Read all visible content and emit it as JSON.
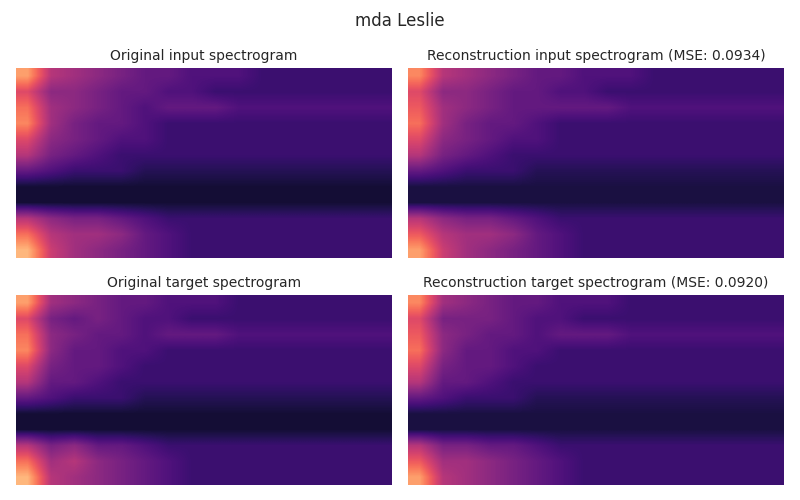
{
  "title": "mda Leslie",
  "chart_data": [
    {
      "type": "heatmap",
      "title": "Original input spectrogram",
      "tick_labels": false,
      "value_range": [
        0,
        1
      ],
      "cells": [
        [
          0.8,
          0.5,
          0.45,
          0.4,
          0.35,
          0.3,
          0.3,
          0.25,
          0.25,
          0.25,
          0.2,
          0.2,
          0.2,
          0.2,
          0.2,
          0.2
        ],
        [
          0.6,
          0.4,
          0.4,
          0.35,
          0.3,
          0.3,
          0.25,
          0.25,
          0.2,
          0.2,
          0.2,
          0.2,
          0.2,
          0.2,
          0.2,
          0.2
        ],
        [
          0.7,
          0.45,
          0.4,
          0.35,
          0.3,
          0.25,
          0.3,
          0.3,
          0.3,
          0.25,
          0.25,
          0.25,
          0.25,
          0.25,
          0.25,
          0.25
        ],
        [
          0.75,
          0.45,
          0.35,
          0.3,
          0.3,
          0.25,
          0.2,
          0.2,
          0.2,
          0.2,
          0.2,
          0.2,
          0.2,
          0.2,
          0.2,
          0.2
        ],
        [
          0.6,
          0.4,
          0.35,
          0.3,
          0.25,
          0.25,
          0.2,
          0.2,
          0.2,
          0.2,
          0.2,
          0.2,
          0.2,
          0.2,
          0.2,
          0.2
        ],
        [
          0.5,
          0.35,
          0.3,
          0.25,
          0.2,
          0.2,
          0.2,
          0.2,
          0.2,
          0.2,
          0.2,
          0.2,
          0.2,
          0.2,
          0.2,
          0.2
        ],
        [
          0.3,
          0.25,
          0.2,
          0.2,
          0.2,
          0.15,
          0.15,
          0.15,
          0.15,
          0.15,
          0.15,
          0.15,
          0.15,
          0.15,
          0.15,
          0.15
        ],
        [
          0.1,
          0.1,
          0.1,
          0.1,
          0.1,
          0.1,
          0.1,
          0.1,
          0.1,
          0.1,
          0.1,
          0.1,
          0.1,
          0.1,
          0.1,
          0.1
        ],
        [
          0.1,
          0.1,
          0.1,
          0.1,
          0.1,
          0.1,
          0.1,
          0.1,
          0.1,
          0.1,
          0.1,
          0.1,
          0.1,
          0.1,
          0.1,
          0.1
        ],
        [
          0.5,
          0.4,
          0.35,
          0.35,
          0.3,
          0.25,
          0.2,
          0.2,
          0.2,
          0.2,
          0.2,
          0.2,
          0.2,
          0.2,
          0.2,
          0.2
        ],
        [
          0.7,
          0.5,
          0.45,
          0.45,
          0.4,
          0.3,
          0.25,
          0.2,
          0.2,
          0.2,
          0.2,
          0.2,
          0.2,
          0.2,
          0.2,
          0.2
        ],
        [
          0.85,
          0.55,
          0.45,
          0.4,
          0.35,
          0.3,
          0.25,
          0.2,
          0.2,
          0.2,
          0.2,
          0.2,
          0.2,
          0.2,
          0.2,
          0.2
        ]
      ]
    },
    {
      "type": "heatmap",
      "title": "Reconstruction input spectrogram (MSE: 0.0934)",
      "tick_labels": false,
      "value_range": [
        0,
        1
      ],
      "cells": [
        [
          0.75,
          0.5,
          0.45,
          0.4,
          0.35,
          0.3,
          0.3,
          0.25,
          0.25,
          0.25,
          0.2,
          0.2,
          0.2,
          0.2,
          0.2,
          0.2
        ],
        [
          0.6,
          0.4,
          0.4,
          0.35,
          0.3,
          0.3,
          0.25,
          0.25,
          0.2,
          0.2,
          0.2,
          0.2,
          0.2,
          0.2,
          0.2,
          0.2
        ],
        [
          0.65,
          0.45,
          0.4,
          0.35,
          0.3,
          0.3,
          0.3,
          0.3,
          0.3,
          0.25,
          0.25,
          0.25,
          0.25,
          0.25,
          0.25,
          0.25
        ],
        [
          0.7,
          0.45,
          0.35,
          0.3,
          0.3,
          0.25,
          0.2,
          0.2,
          0.2,
          0.2,
          0.2,
          0.2,
          0.2,
          0.2,
          0.2,
          0.2
        ],
        [
          0.6,
          0.4,
          0.35,
          0.3,
          0.25,
          0.25,
          0.2,
          0.2,
          0.2,
          0.2,
          0.2,
          0.2,
          0.2,
          0.2,
          0.2,
          0.2
        ],
        [
          0.5,
          0.35,
          0.3,
          0.25,
          0.2,
          0.2,
          0.2,
          0.2,
          0.2,
          0.2,
          0.2,
          0.2,
          0.2,
          0.2,
          0.2,
          0.2
        ],
        [
          0.3,
          0.25,
          0.2,
          0.2,
          0.2,
          0.15,
          0.15,
          0.15,
          0.15,
          0.15,
          0.15,
          0.15,
          0.15,
          0.15,
          0.15,
          0.15
        ],
        [
          0.12,
          0.12,
          0.12,
          0.12,
          0.12,
          0.12,
          0.12,
          0.12,
          0.12,
          0.12,
          0.12,
          0.12,
          0.12,
          0.12,
          0.12,
          0.12
        ],
        [
          0.12,
          0.12,
          0.12,
          0.12,
          0.12,
          0.12,
          0.12,
          0.12,
          0.12,
          0.12,
          0.12,
          0.12,
          0.12,
          0.12,
          0.12,
          0.12
        ],
        [
          0.5,
          0.4,
          0.35,
          0.35,
          0.3,
          0.25,
          0.2,
          0.2,
          0.2,
          0.2,
          0.2,
          0.2,
          0.2,
          0.2,
          0.2,
          0.2
        ],
        [
          0.65,
          0.5,
          0.45,
          0.45,
          0.4,
          0.3,
          0.25,
          0.2,
          0.2,
          0.2,
          0.2,
          0.2,
          0.2,
          0.2,
          0.2,
          0.2
        ],
        [
          0.8,
          0.55,
          0.45,
          0.4,
          0.35,
          0.3,
          0.25,
          0.2,
          0.2,
          0.2,
          0.2,
          0.2,
          0.2,
          0.2,
          0.2,
          0.2
        ]
      ]
    },
    {
      "type": "heatmap",
      "title": "Original target spectrogram",
      "tick_labels": false,
      "value_range": [
        0,
        1
      ],
      "cells": [
        [
          0.8,
          0.45,
          0.4,
          0.35,
          0.3,
          0.3,
          0.25,
          0.25,
          0.25,
          0.2,
          0.2,
          0.2,
          0.2,
          0.2,
          0.2,
          0.2
        ],
        [
          0.6,
          0.35,
          0.3,
          0.35,
          0.3,
          0.25,
          0.25,
          0.2,
          0.2,
          0.2,
          0.2,
          0.2,
          0.2,
          0.2,
          0.2,
          0.2
        ],
        [
          0.7,
          0.4,
          0.35,
          0.3,
          0.3,
          0.25,
          0.3,
          0.3,
          0.3,
          0.25,
          0.25,
          0.25,
          0.25,
          0.25,
          0.25,
          0.25
        ],
        [
          0.75,
          0.4,
          0.3,
          0.3,
          0.25,
          0.25,
          0.2,
          0.2,
          0.2,
          0.2,
          0.2,
          0.2,
          0.2,
          0.2,
          0.2,
          0.2
        ],
        [
          0.6,
          0.35,
          0.3,
          0.3,
          0.25,
          0.2,
          0.2,
          0.2,
          0.2,
          0.2,
          0.2,
          0.2,
          0.2,
          0.2,
          0.2,
          0.2
        ],
        [
          0.5,
          0.3,
          0.3,
          0.25,
          0.2,
          0.2,
          0.2,
          0.2,
          0.2,
          0.2,
          0.2,
          0.2,
          0.2,
          0.2,
          0.2,
          0.2
        ],
        [
          0.3,
          0.25,
          0.2,
          0.2,
          0.2,
          0.15,
          0.15,
          0.15,
          0.15,
          0.15,
          0.15,
          0.15,
          0.15,
          0.15,
          0.15,
          0.15
        ],
        [
          0.1,
          0.1,
          0.1,
          0.1,
          0.1,
          0.1,
          0.1,
          0.1,
          0.1,
          0.1,
          0.1,
          0.1,
          0.1,
          0.1,
          0.1,
          0.1
        ],
        [
          0.1,
          0.1,
          0.1,
          0.1,
          0.1,
          0.1,
          0.1,
          0.1,
          0.1,
          0.1,
          0.1,
          0.1,
          0.1,
          0.1,
          0.1,
          0.1
        ],
        [
          0.5,
          0.35,
          0.4,
          0.3,
          0.3,
          0.25,
          0.2,
          0.2,
          0.2,
          0.2,
          0.2,
          0.2,
          0.2,
          0.2,
          0.2,
          0.2
        ],
        [
          0.7,
          0.45,
          0.5,
          0.4,
          0.35,
          0.3,
          0.25,
          0.2,
          0.2,
          0.2,
          0.2,
          0.2,
          0.2,
          0.2,
          0.2,
          0.2
        ],
        [
          0.85,
          0.5,
          0.45,
          0.4,
          0.35,
          0.3,
          0.25,
          0.2,
          0.2,
          0.2,
          0.2,
          0.2,
          0.2,
          0.2,
          0.2,
          0.2
        ]
      ]
    },
    {
      "type": "heatmap",
      "title": "Reconstruction target spectrogram (MSE: 0.0920)",
      "tick_labels": false,
      "value_range": [
        0,
        1
      ],
      "cells": [
        [
          0.75,
          0.45,
          0.4,
          0.35,
          0.3,
          0.3,
          0.25,
          0.25,
          0.25,
          0.2,
          0.2,
          0.2,
          0.2,
          0.2,
          0.2,
          0.2
        ],
        [
          0.6,
          0.35,
          0.35,
          0.35,
          0.3,
          0.25,
          0.25,
          0.2,
          0.2,
          0.2,
          0.2,
          0.2,
          0.2,
          0.2,
          0.2,
          0.2
        ],
        [
          0.65,
          0.4,
          0.35,
          0.3,
          0.3,
          0.25,
          0.3,
          0.3,
          0.3,
          0.25,
          0.25,
          0.25,
          0.25,
          0.25,
          0.25,
          0.25
        ],
        [
          0.7,
          0.4,
          0.3,
          0.3,
          0.25,
          0.25,
          0.2,
          0.2,
          0.2,
          0.2,
          0.2,
          0.2,
          0.2,
          0.2,
          0.2,
          0.2
        ],
        [
          0.6,
          0.35,
          0.3,
          0.3,
          0.25,
          0.2,
          0.2,
          0.2,
          0.2,
          0.2,
          0.2,
          0.2,
          0.2,
          0.2,
          0.2,
          0.2
        ],
        [
          0.5,
          0.3,
          0.3,
          0.25,
          0.2,
          0.2,
          0.2,
          0.2,
          0.2,
          0.2,
          0.2,
          0.2,
          0.2,
          0.2,
          0.2,
          0.2
        ],
        [
          0.3,
          0.25,
          0.2,
          0.2,
          0.2,
          0.15,
          0.15,
          0.15,
          0.15,
          0.15,
          0.15,
          0.15,
          0.15,
          0.15,
          0.15,
          0.15
        ],
        [
          0.12,
          0.12,
          0.12,
          0.12,
          0.12,
          0.12,
          0.12,
          0.12,
          0.12,
          0.12,
          0.12,
          0.12,
          0.12,
          0.12,
          0.12,
          0.12
        ],
        [
          0.12,
          0.12,
          0.12,
          0.12,
          0.12,
          0.12,
          0.12,
          0.12,
          0.12,
          0.12,
          0.12,
          0.12,
          0.12,
          0.12,
          0.12,
          0.12
        ],
        [
          0.5,
          0.35,
          0.35,
          0.3,
          0.3,
          0.25,
          0.2,
          0.2,
          0.2,
          0.2,
          0.2,
          0.2,
          0.2,
          0.2,
          0.2,
          0.2
        ],
        [
          0.65,
          0.45,
          0.45,
          0.4,
          0.35,
          0.3,
          0.25,
          0.2,
          0.2,
          0.2,
          0.2,
          0.2,
          0.2,
          0.2,
          0.2,
          0.2
        ],
        [
          0.8,
          0.5,
          0.45,
          0.4,
          0.35,
          0.3,
          0.25,
          0.2,
          0.2,
          0.2,
          0.2,
          0.2,
          0.2,
          0.2,
          0.2,
          0.2
        ]
      ]
    }
  ]
}
